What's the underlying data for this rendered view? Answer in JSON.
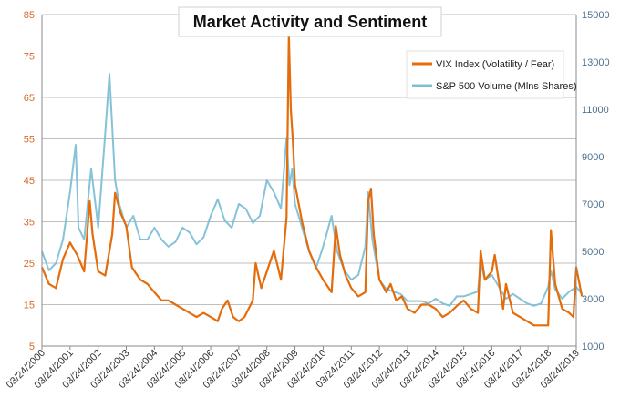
{
  "chart_data": {
    "type": "line",
    "title": "Market Activity and Sentiment",
    "xlabel": "",
    "ylabel_left": "",
    "ylabel_right": "",
    "x_ticks": [
      "03/24/2000",
      "03/24/2001",
      "03/24/2002",
      "03/24/2003",
      "03/24/2004",
      "03/24/2005",
      "03/24/2006",
      "03/24/2007",
      "03/24/2008",
      "03/24/2009",
      "03/24/2010",
      "03/24/2011",
      "03/24/2012",
      "03/24/2013",
      "03/24/2014",
      "03/24/2015",
      "03/24/2016",
      "03/24/2017",
      "03/24/2018",
      "03/24/2019"
    ],
    "x_range": [
      2000.0,
      2019.0
    ],
    "y_left_lim": [
      5,
      85
    ],
    "y_left_ticks": [
      5,
      15,
      25,
      35,
      45,
      55,
      65,
      75,
      85
    ],
    "y_right_lim": [
      1000,
      15000
    ],
    "y_right_ticks": [
      1000,
      3000,
      5000,
      7000,
      9000,
      11000,
      13000,
      15000
    ],
    "grid": "horizontal",
    "legend_position": "top-right",
    "series": [
      {
        "name": "VIX Index (Volatility / Fear)",
        "axis": "left",
        "color": "#e46c0a",
        "x": [
          2000.0,
          2000.25,
          2000.5,
          2000.75,
          2001.0,
          2001.25,
          2001.5,
          2001.7,
          2001.8,
          2002.0,
          2002.25,
          2002.5,
          2002.6,
          2002.8,
          2003.0,
          2003.2,
          2003.5,
          2003.75,
          2004.0,
          2004.25,
          2004.5,
          2004.75,
          2005.0,
          2005.25,
          2005.5,
          2005.75,
          2006.0,
          2006.25,
          2006.4,
          2006.6,
          2006.8,
          2007.0,
          2007.2,
          2007.5,
          2007.6,
          2007.8,
          2008.0,
          2008.25,
          2008.5,
          2008.7,
          2008.78,
          2008.85,
          2008.92,
          2009.0,
          2009.25,
          2009.5,
          2009.75,
          2010.0,
          2010.3,
          2010.45,
          2010.6,
          2010.8,
          2011.0,
          2011.25,
          2011.5,
          2011.6,
          2011.7,
          2011.8,
          2012.0,
          2012.25,
          2012.4,
          2012.6,
          2012.8,
          2013.0,
          2013.25,
          2013.5,
          2013.75,
          2014.0,
          2014.25,
          2014.5,
          2014.8,
          2015.0,
          2015.25,
          2015.5,
          2015.6,
          2015.75,
          2016.0,
          2016.1,
          2016.4,
          2016.5,
          2016.75,
          2017.0,
          2017.25,
          2017.5,
          2017.75,
          2018.0,
          2018.1,
          2018.25,
          2018.5,
          2018.75,
          2018.9,
          2019.0,
          2019.2
        ],
        "values": [
          24,
          20,
          19,
          26,
          30,
          27,
          23,
          40,
          32,
          23,
          22,
          32,
          42,
          37,
          34,
          24,
          21,
          20,
          18,
          16,
          16,
          15,
          14,
          13,
          12,
          13,
          12,
          11,
          14,
          16,
          12,
          11,
          12,
          16,
          25,
          19,
          23,
          28,
          21,
          36,
          80,
          62,
          55,
          44,
          35,
          28,
          24,
          21,
          18,
          34,
          27,
          22,
          19,
          17,
          18,
          40,
          43,
          32,
          21,
          18,
          20,
          16,
          17,
          14,
          13,
          15,
          15,
          14,
          12,
          13,
          15,
          16,
          14,
          13,
          28,
          21,
          23,
          27,
          14,
          20,
          13,
          12,
          11,
          10,
          10,
          10,
          33,
          20,
          14,
          13,
          12,
          24,
          17
        ]
      },
      {
        "name": "S&P 500 Volume (Mlns Shares)",
        "axis": "right",
        "color": "#7fbfd6",
        "x": [
          2000.0,
          2000.25,
          2000.5,
          2000.75,
          2001.0,
          2001.2,
          2001.3,
          2001.5,
          2001.75,
          2002.0,
          2002.25,
          2002.4,
          2002.6,
          2002.75,
          2003.0,
          2003.25,
          2003.5,
          2003.75,
          2004.0,
          2004.25,
          2004.5,
          2004.75,
          2005.0,
          2005.25,
          2005.5,
          2005.75,
          2006.0,
          2006.25,
          2006.5,
          2006.75,
          2007.0,
          2007.25,
          2007.5,
          2007.75,
          2008.0,
          2008.25,
          2008.5,
          2008.7,
          2008.8,
          2008.9,
          2009.0,
          2009.25,
          2009.5,
          2009.75,
          2010.0,
          2010.3,
          2010.5,
          2010.75,
          2011.0,
          2011.25,
          2011.5,
          2011.6,
          2011.75,
          2012.0,
          2012.25,
          2012.5,
          2012.75,
          2013.0,
          2013.25,
          2013.5,
          2013.75,
          2014.0,
          2014.25,
          2014.5,
          2014.75,
          2015.0,
          2015.25,
          2015.5,
          2015.6,
          2015.75,
          2016.0,
          2016.25,
          2016.5,
          2016.75,
          2017.0,
          2017.25,
          2017.5,
          2017.75,
          2018.0,
          2018.1,
          2018.25,
          2018.5,
          2018.75,
          2019.0,
          2019.2
        ],
        "values": [
          5000,
          4200,
          4500,
          5500,
          7500,
          9500,
          6000,
          5500,
          8500,
          6000,
          10000,
          12500,
          8000,
          7000,
          6000,
          6500,
          5500,
          5500,
          6000,
          5500,
          5200,
          5400,
          6000,
          5800,
          5300,
          5600,
          6500,
          7200,
          6300,
          6000,
          7000,
          6800,
          6200,
          6500,
          8000,
          7500,
          6800,
          9800,
          7800,
          8500,
          7000,
          6000,
          5000,
          4300,
          5200,
          6500,
          5000,
          4200,
          3800,
          4000,
          5200,
          7500,
          5500,
          3800,
          3400,
          3300,
          3200,
          2900,
          2900,
          2900,
          2800,
          3000,
          2800,
          2700,
          3100,
          3100,
          3200,
          3300,
          4500,
          3800,
          4000,
          3500,
          3000,
          3200,
          3000,
          2800,
          2700,
          2800,
          3500,
          4200,
          3400,
          3000,
          3300,
          3500,
          3200
        ]
      }
    ]
  }
}
